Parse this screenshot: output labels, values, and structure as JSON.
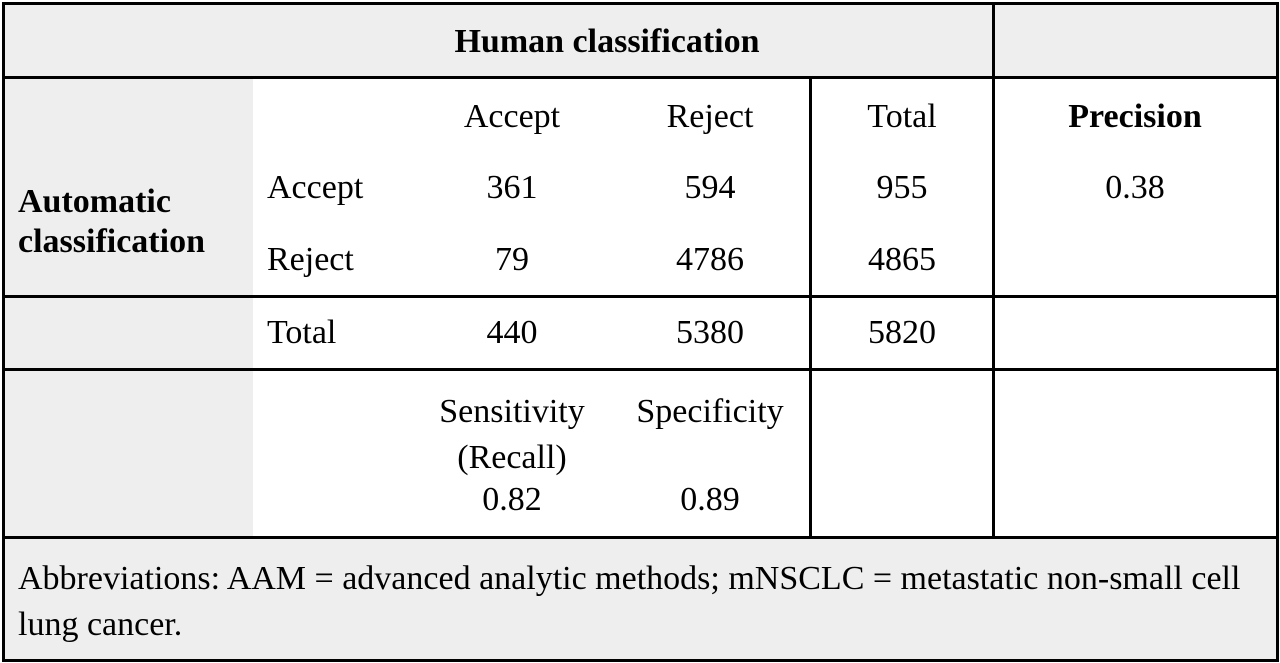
{
  "table": {
    "header": "Human classification",
    "row_header": "Automatic classification",
    "column_labels": [
      "Accept",
      "Reject",
      "Total",
      "Precision"
    ],
    "rows": [
      [
        "Accept",
        361,
        594,
        955,
        0.38
      ],
      [
        "Reject",
        79,
        4786,
        4865
      ]
    ],
    "total_row": [
      "Total",
      440,
      5380,
      5820
    ],
    "metrics": [
      {
        "label": "Sensitivity (Recall)",
        "value": 0.82
      },
      {
        "label": "Specificity",
        "value": 0.89
      }
    ],
    "footnote": "Abbreviations: AAM = advanced analytic methods; mNSCLC = metastatic non-small cell lung cancer."
  }
}
